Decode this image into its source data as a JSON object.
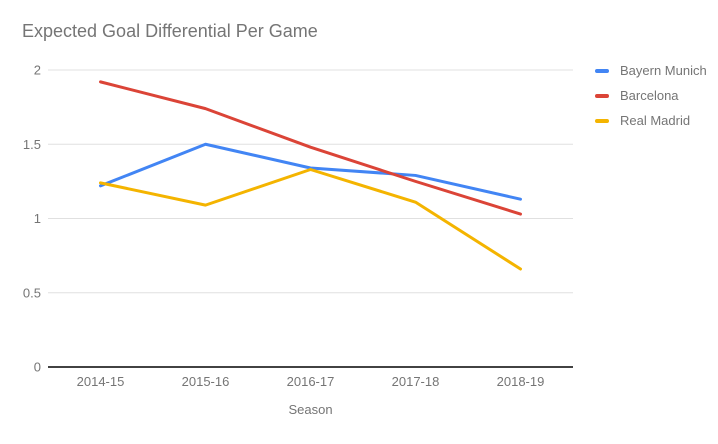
{
  "chart_data": {
    "type": "line",
    "title": "Expected Goal Differential Per Game",
    "xlabel": "Season",
    "ylabel": "",
    "categories": [
      "2014-15",
      "2015-16",
      "2016-17",
      "2017-18",
      "2018-19"
    ],
    "series": [
      {
        "name": "Bayern Munich",
        "color": "#4285F4",
        "values": [
          1.22,
          1.5,
          1.34,
          1.29,
          1.13
        ]
      },
      {
        "name": "Barcelona",
        "color": "#DB4437",
        "values": [
          1.92,
          1.74,
          1.48,
          1.25,
          1.03
        ]
      },
      {
        "name": "Real Madrid",
        "color": "#F4B400",
        "values": [
          1.24,
          1.09,
          1.33,
          1.11,
          0.66
        ]
      }
    ],
    "ylim": [
      0,
      2
    ],
    "yticks": [
      0,
      0.5,
      1,
      1.5,
      2
    ],
    "ytick_labels": [
      "0",
      "0.5",
      "1",
      "1.5",
      "2"
    ],
    "grid": true,
    "legend_position": "right"
  },
  "colors": {
    "text": "#757575",
    "gridline": "#e0e0e0",
    "axis_baseline": "#424242",
    "background": "#ffffff"
  }
}
